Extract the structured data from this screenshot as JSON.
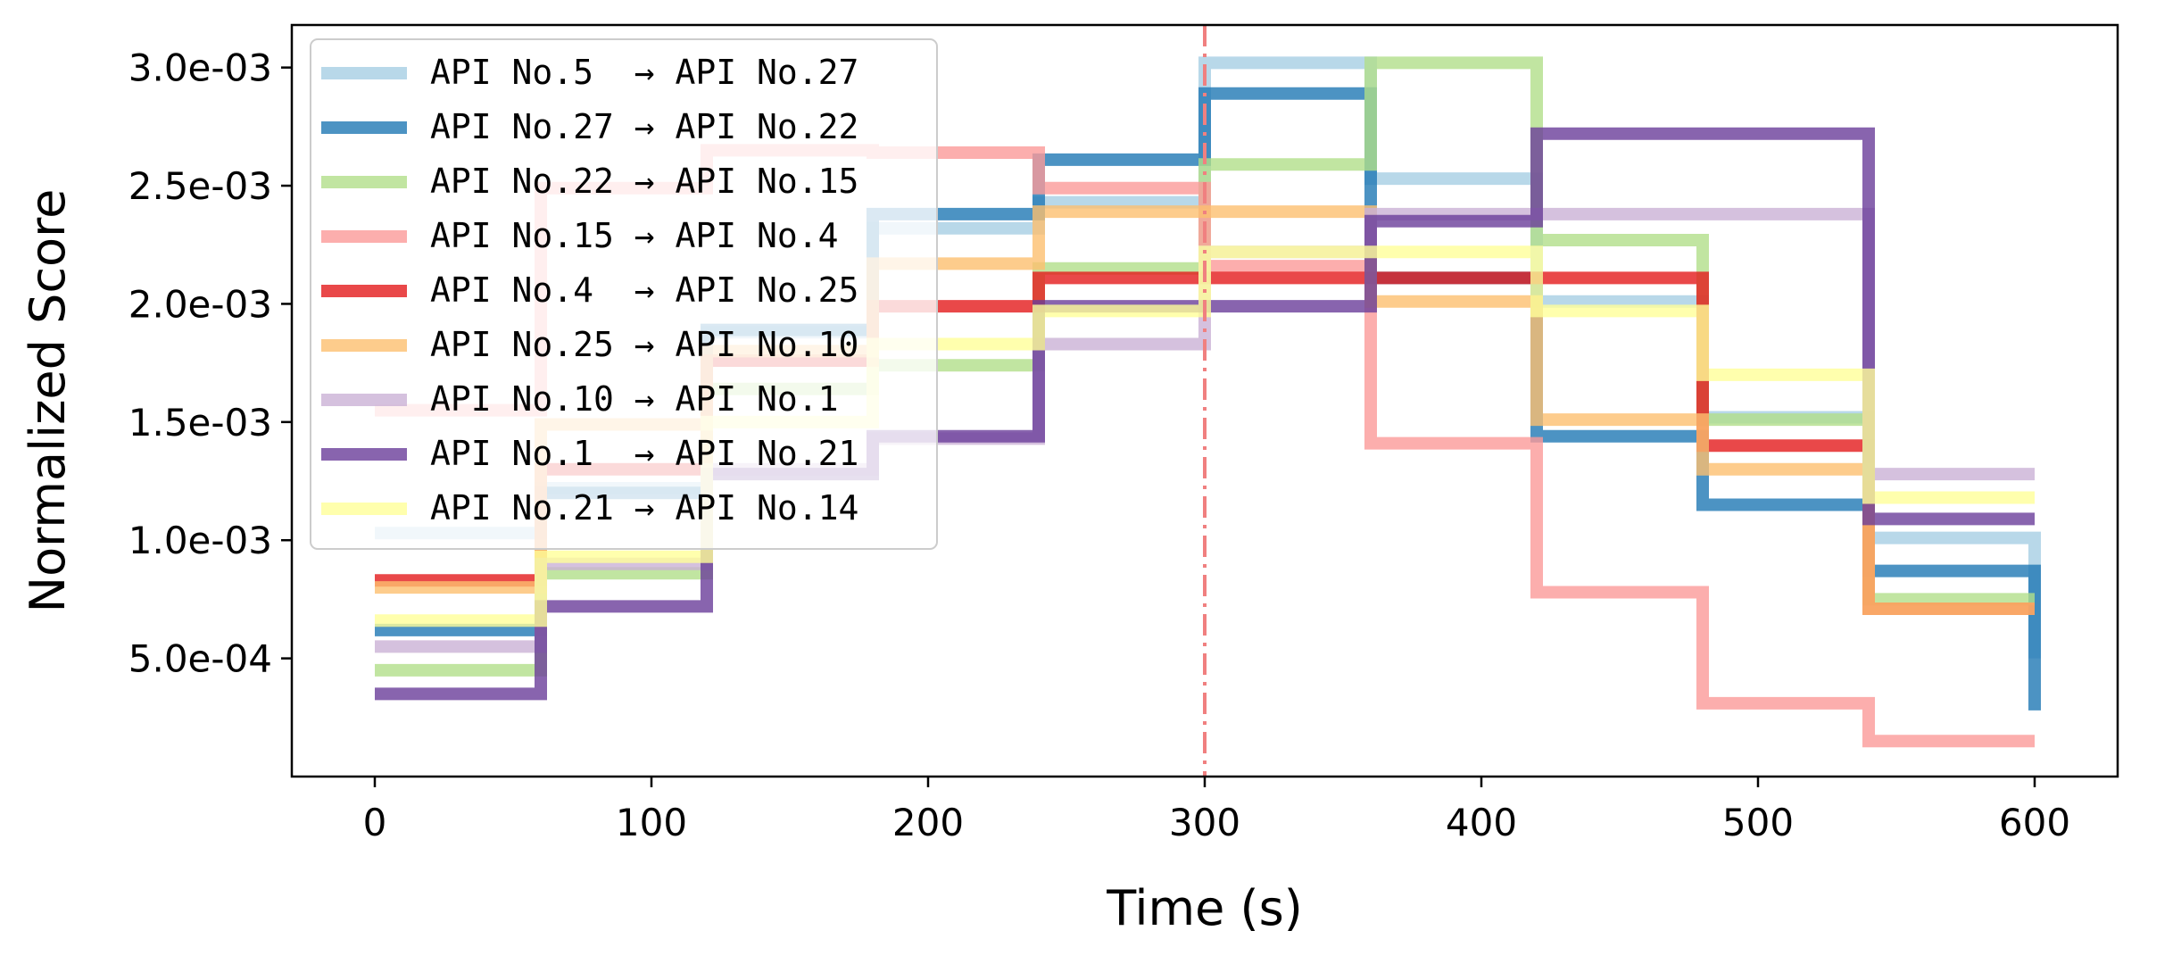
{
  "chart_data": {
    "type": "line",
    "title": "",
    "xlabel": "Time (s)",
    "ylabel": "Normalized Score",
    "xlim": [
      -30,
      630
    ],
    "ylim": [
      0.0,
      0.00318
    ],
    "xticks": [
      0,
      100,
      200,
      300,
      400,
      500,
      600
    ],
    "xtick_labels": [
      "0",
      "100",
      "200",
      "300",
      "400",
      "500",
      "600"
    ],
    "yticks": [
      0.0005,
      0.001,
      0.0015,
      0.002,
      0.0025,
      0.003
    ],
    "ytick_labels": [
      "5.0e-04",
      "1.0e-03",
      "1.5e-03",
      "2.0e-03",
      "2.5e-03",
      "3.0e-03"
    ],
    "step_times": [
      0,
      60,
      120,
      180,
      240,
      300,
      360,
      420,
      480,
      540,
      600
    ],
    "vline": {
      "x": 300,
      "style": "dash-dot",
      "color": "#f08080"
    },
    "legend_position": "top-left",
    "series": [
      {
        "name": "API No.5  → API No.27",
        "from": "API No.5",
        "to": "API No.27",
        "color": "#a6cee3",
        "opacity": 0.8,
        "values": [
          0.00103,
          0.00122,
          0.00188,
          0.00232,
          0.00243,
          0.00302,
          0.00253,
          0.00201,
          0.00152,
          0.00101,
          0.0005
        ]
      },
      {
        "name": "API No.27 → API No.22",
        "from": "API No.27",
        "to": "API No.22",
        "color": "#1f78b4",
        "opacity": 0.8,
        "values": [
          0.00062,
          0.0012,
          0.00189,
          0.00238,
          0.00261,
          0.00289,
          0.00211,
          0.00144,
          0.00115,
          0.00087,
          0.00028
        ]
      },
      {
        "name": "API No.22 → API No.15",
        "from": "API No.22",
        "to": "API No.15",
        "color": "#b2df8a",
        "opacity": 0.8,
        "values": [
          0.00045,
          0.00086,
          0.00164,
          0.00174,
          0.00215,
          0.00259,
          0.00302,
          0.00227,
          0.00151,
          0.00075,
          0.00075
        ]
      },
      {
        "name": "API No.15 → API No.4",
        "from": "API No.15",
        "to": "API No.4",
        "color": "#fb9a99",
        "opacity": 0.8,
        "values": [
          0.00155,
          0.00249,
          0.00265,
          0.00264,
          0.00249,
          0.00216,
          0.00141,
          0.00078,
          0.00031,
          0.00015,
          0.00015
        ]
      },
      {
        "name": "API No.4  → API No.25",
        "from": "API No.4",
        "to": "API No.25",
        "color": "#e31a1c",
        "opacity": 0.8,
        "values": [
          0.00083,
          0.0013,
          0.00176,
          0.00199,
          0.00211,
          0.00211,
          0.00211,
          0.00211,
          0.0014,
          0.00071,
          0.00071
        ]
      },
      {
        "name": "API No.25 → API No.10",
        "from": "API No.25",
        "to": "API No.10",
        "color": "#fdbf6f",
        "opacity": 0.8,
        "values": [
          0.0008,
          0.00149,
          0.0018,
          0.00217,
          0.00239,
          0.00239,
          0.00201,
          0.00151,
          0.0013,
          0.00071,
          0.00071
        ]
      },
      {
        "name": "API No.10 → API No.1",
        "from": "API No.10",
        "to": "API No.1",
        "color": "#cab2d6",
        "opacity": 0.8,
        "values": [
          0.00055,
          0.0009,
          0.0013,
          0.00143,
          0.00183,
          0.00222,
          0.00238,
          0.00238,
          0.00238,
          0.00128,
          0.00128
        ]
      },
      {
        "name": "API No.1  → API No.21",
        "from": "API No.1",
        "to": "API No.21",
        "color": "#6a3d9a",
        "opacity": 0.8,
        "values": [
          0.00035,
          0.00072,
          0.00128,
          0.00144,
          0.00199,
          0.00199,
          0.00235,
          0.00272,
          0.00272,
          0.00109,
          0.00109
        ]
      },
      {
        "name": "API No.21 → API No.14",
        "from": "API No.21",
        "to": "API No.14",
        "color": "#ffff99",
        "opacity": 0.8,
        "values": [
          0.00066,
          0.00093,
          0.0015,
          0.00183,
          0.00197,
          0.00222,
          0.00222,
          0.00197,
          0.0017,
          0.00118,
          0.00118
        ]
      }
    ]
  }
}
